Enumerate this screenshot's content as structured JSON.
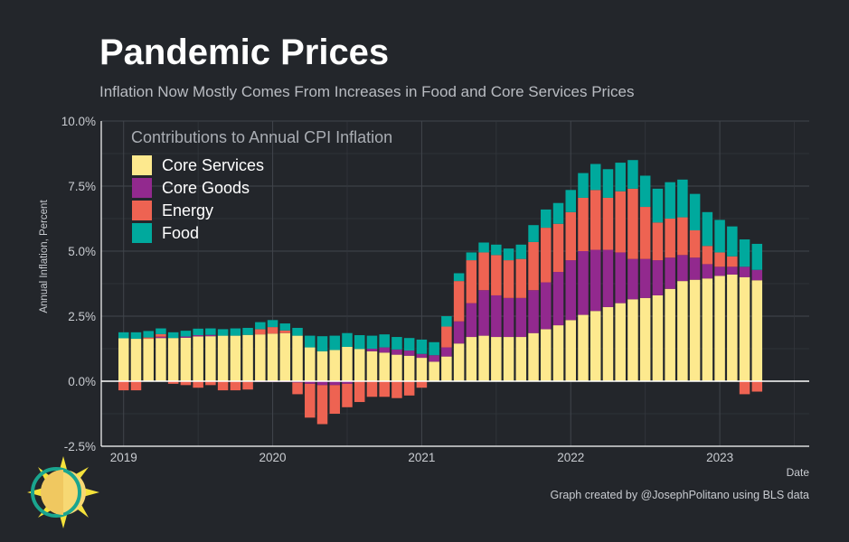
{
  "header": {
    "title": "Pandemic Prices",
    "subtitle": "Inflation Now Mostly Comes From Increases in Food and Core Services Prices"
  },
  "caption": "Graph created by @JosephPolitano using BLS data",
  "logo": {
    "icon": "sun-logo-icon"
  },
  "colors": {
    "background": "#23262b",
    "grid": "#3a3e45",
    "core_services": "#fde98e",
    "core_goods": "#92298e",
    "energy": "#ee6352",
    "food": "#00a99d"
  },
  "chart_data": {
    "type": "bar",
    "stacked": true,
    "legend_title": "Contributions to Annual CPI Inflation",
    "legend_position": "top-left",
    "xlabel": "Date",
    "ylabel": "Annual Inflation, Percent",
    "ylim": [
      -2.5,
      10.0
    ],
    "yticks": [
      "-2.5%",
      "0.0%",
      "2.5%",
      "5.0%",
      "7.5%",
      "10.0%"
    ],
    "xticks": [
      "2019",
      "2020",
      "2021",
      "2022",
      "2023"
    ],
    "grid": true,
    "x": [
      "2019-01",
      "2019-02",
      "2019-03",
      "2019-04",
      "2019-05",
      "2019-06",
      "2019-07",
      "2019-08",
      "2019-09",
      "2019-10",
      "2019-11",
      "2019-12",
      "2020-01",
      "2020-02",
      "2020-03",
      "2020-04",
      "2020-05",
      "2020-06",
      "2020-07",
      "2020-08",
      "2020-09",
      "2020-10",
      "2020-11",
      "2020-12",
      "2021-01",
      "2021-02",
      "2021-03",
      "2021-04",
      "2021-05",
      "2021-06",
      "2021-07",
      "2021-08",
      "2021-09",
      "2021-10",
      "2021-11",
      "2021-12",
      "2022-01",
      "2022-02",
      "2022-03",
      "2022-04",
      "2022-05",
      "2022-06",
      "2022-07",
      "2022-08",
      "2022-09",
      "2022-10",
      "2022-11",
      "2022-12",
      "2023-01",
      "2023-02",
      "2023-03",
      "2023-04"
    ],
    "series": [
      {
        "name": "Core Services",
        "color": "#fde98e",
        "values": [
          1.65,
          1.63,
          1.63,
          1.66,
          1.66,
          1.67,
          1.72,
          1.73,
          1.75,
          1.75,
          1.78,
          1.8,
          1.83,
          1.85,
          1.75,
          1.3,
          1.15,
          1.2,
          1.32,
          1.24,
          1.15,
          1.1,
          1.02,
          0.98,
          0.9,
          0.75,
          0.95,
          1.45,
          1.7,
          1.75,
          1.7,
          1.7,
          1.7,
          1.85,
          2.0,
          2.15,
          2.35,
          2.55,
          2.7,
          2.85,
          3.0,
          3.15,
          3.2,
          3.3,
          3.55,
          3.85,
          3.9,
          3.95,
          4.05,
          4.1,
          4.0,
          3.88
        ]
      },
      {
        "name": "Core Goods",
        "color": "#92298e",
        "values": [
          0.0,
          0.0,
          0.0,
          0.05,
          0.0,
          0.05,
          0.05,
          0.05,
          0.0,
          0.0,
          -0.02,
          -0.03,
          -0.03,
          -0.03,
          -0.05,
          -0.1,
          -0.15,
          -0.15,
          -0.1,
          0.0,
          0.1,
          0.2,
          0.2,
          0.2,
          0.15,
          0.25,
          0.35,
          0.85,
          1.3,
          1.75,
          1.6,
          1.5,
          1.5,
          1.65,
          1.8,
          2.05,
          2.3,
          2.45,
          2.35,
          2.2,
          1.95,
          1.55,
          1.5,
          1.35,
          1.2,
          1.0,
          0.85,
          0.55,
          0.35,
          0.3,
          0.4,
          0.4
        ]
      },
      {
        "name": "Energy",
        "color": "#ee6352",
        "values": [
          -0.35,
          -0.35,
          0.05,
          0.1,
          -0.1,
          -0.15,
          -0.25,
          -0.15,
          -0.35,
          -0.35,
          -0.3,
          0.2,
          0.25,
          0.1,
          -0.45,
          -1.3,
          -1.5,
          -1.1,
          -0.9,
          -0.8,
          -0.6,
          -0.6,
          -0.65,
          -0.55,
          -0.25,
          0.0,
          0.8,
          1.55,
          1.65,
          1.45,
          1.55,
          1.45,
          1.5,
          1.85,
          2.1,
          1.85,
          1.85,
          2.05,
          2.3,
          2.0,
          2.35,
          2.7,
          2.0,
          1.45,
          1.5,
          1.45,
          1.05,
          0.7,
          0.55,
          0.4,
          -0.5,
          -0.4
        ]
      },
      {
        "name": "Food",
        "color": "#00a99d",
        "values": [
          0.23,
          0.25,
          0.25,
          0.22,
          0.22,
          0.22,
          0.25,
          0.25,
          0.25,
          0.28,
          0.27,
          0.27,
          0.27,
          0.27,
          0.3,
          0.45,
          0.58,
          0.55,
          0.53,
          0.53,
          0.5,
          0.5,
          0.48,
          0.48,
          0.55,
          0.5,
          0.4,
          0.3,
          0.3,
          0.38,
          0.4,
          0.45,
          0.55,
          0.65,
          0.7,
          0.8,
          0.85,
          0.95,
          1.0,
          1.1,
          1.1,
          1.1,
          1.2,
          1.3,
          1.4,
          1.45,
          1.4,
          1.3,
          1.25,
          1.15,
          1.05,
          1.0
        ]
      }
    ]
  }
}
